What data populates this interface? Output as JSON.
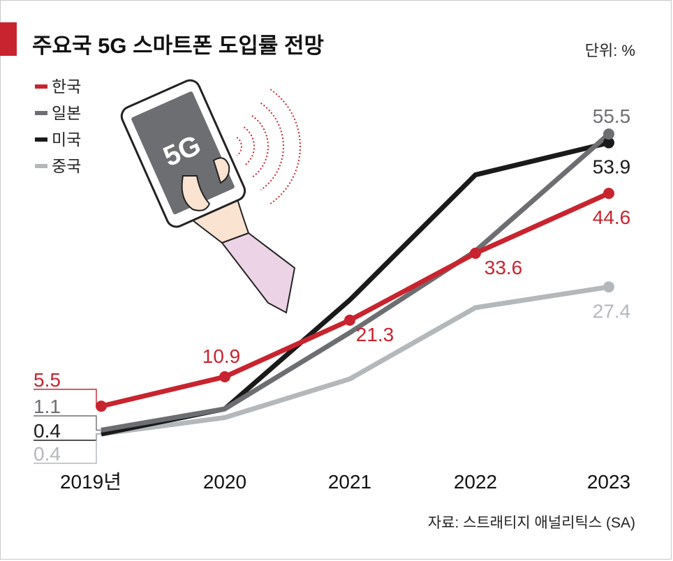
{
  "header": {
    "title": "주요국 5G 스마트폰 도입률 전망",
    "unit": "단위: %",
    "source": "자료: 스트래티지 애널리틱스 (SA)"
  },
  "illustration": {
    "phone_label": "5G",
    "icon": "hand-holding-5g-phone-icon"
  },
  "colors": {
    "korea": "#c8242f",
    "japan": "#6d6e71",
    "usa": "#1a1a1a",
    "china": "#b4b8bb",
    "accent_bar": "#c8242f"
  },
  "chart_data": {
    "type": "line",
    "title": "주요국 5G 스마트폰 도입률 전망",
    "unit": "단위: %",
    "x": [
      "2019년",
      "2020",
      "2021",
      "2022",
      "2023"
    ],
    "ylim": [
      0,
      60
    ],
    "grid": false,
    "legend_position": "top-left",
    "series": [
      {
        "name": "한국",
        "key": "korea",
        "values": [
          5.5,
          10.9,
          21.3,
          33.6,
          44.6
        ],
        "labels": [
          "5.5",
          "10.9",
          "21.3",
          "33.6",
          "44.6"
        ]
      },
      {
        "name": "일본",
        "key": "japan",
        "values": [
          1.1,
          5,
          19,
          34,
          55.5
        ],
        "labels": [
          "1.1",
          null,
          null,
          null,
          "55.5"
        ]
      },
      {
        "name": "미국",
        "key": "usa",
        "values": [
          0.4,
          5,
          25,
          48,
          53.9
        ],
        "labels": [
          "0.4",
          null,
          null,
          null,
          "53.9"
        ]
      },
      {
        "name": "중국",
        "key": "china",
        "values": [
          0.4,
          3.4,
          10.5,
          23.6,
          27.4
        ],
        "labels": [
          "0.4",
          null,
          null,
          null,
          "27.4"
        ]
      }
    ]
  }
}
